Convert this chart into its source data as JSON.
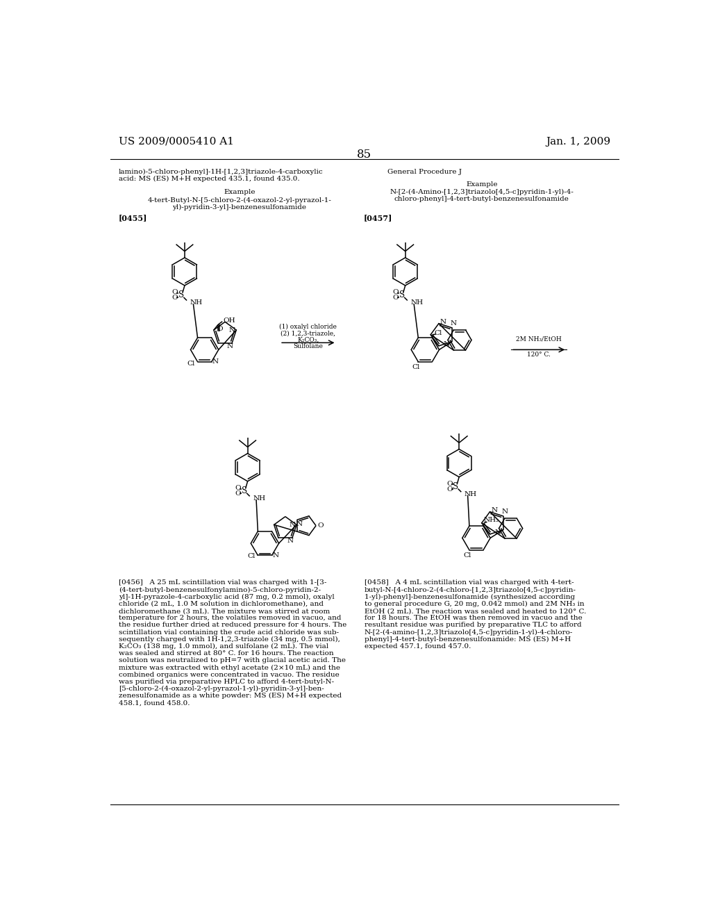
{
  "page_number": "85",
  "header_left": "US 2009/0005410 A1",
  "header_right": "Jan. 1, 2009",
  "background_color": "#ffffff",
  "text_color": "#000000",
  "font_size_header": 11,
  "font_size_body": 7.5,
  "font_size_label": 8,
  "reaction1_label1": "(1) oxalyl chloride",
  "reaction1_label2": "(2) 1,2,3-triazole,",
  "reaction1_label3": "K₂CO₃,",
  "reaction1_label4": "Sulfolane",
  "reaction2_label1": "2M NH₃/EtOH",
  "reaction2_label2": "120° C.",
  "left_example_title": "Example",
  "left_compound_name_1": "4-tert-Butyl-N-[5-chloro-2-(4-oxazol-2-yl-pyrazol-1-",
  "left_compound_name_2": "yl)-pyridin-3-yl]-benzenesulfonamide",
  "left_label": "[0455]",
  "right_gen_proc": "General Procedure J",
  "right_example_title": "Example",
  "right_compound_name_1": "N-[2-(4-Amino-[1,2,3]triazolo[4,5-c]pyridin-1-yl)-4-",
  "right_compound_name_2": "chloro-phenyl]-4-tert-butyl-benzenesulfonamide",
  "right_label": "[0457]",
  "para0456_lines": [
    "[0456]   A 25 mL scintillation vial was charged with 1-[3-",
    "(4-tert-butyl-benzenesulfonylamino)-5-chloro-pyridin-2-",
    "yl]-1H-pyrazole-4-carboxylic acid (87 mg, 0.2 mmol), oxalyl",
    "chloride (2 mL, 1.0 M solution in dichloromethane), and",
    "dichloromethane (3 mL). The mixture was stirred at room",
    "temperature for 2 hours, the volatiles removed in vacuo, and",
    "the residue further dried at reduced pressure for 4 hours. The",
    "scintillation vial containing the crude acid chloride was sub-",
    "sequently charged with 1H-1,2,3-triazole (34 mg, 0.5 mmol),",
    "K₂CO₃ (138 mg, 1.0 mmol), and sulfolane (2 mL). The vial",
    "was sealed and stirred at 80° C. for 16 hours. The reaction",
    "solution was neutralized to pH=7 with glacial acetic acid. The",
    "mixture was extracted with ethyl acetate (2×10 mL) and the",
    "combined organics were concentrated in vacuo. The residue",
    "was purified via preparative HPLC to afford 4-tert-butyl-N-",
    "[5-chloro-2-(4-oxazol-2-yl-pyrazol-1-yl)-pyridin-3-yl]-ben-",
    "zenesulfonamide as a white powder: MS (ES) M+H expected",
    "458.1, found 458.0."
  ],
  "para0458_lines": [
    "[0458]   A 4 mL scintillation vial was charged with 4-tert-",
    "butyl-N-[4-chloro-2-(4-chloro-[1,2,3]triazolo[4,5-c]pyridin-",
    "1-yl)-phenyl]-benzenesulfonamide (synthesized according",
    "to general procedure G, 20 mg, 0.042 mmol) and 2M NH₃ in",
    "EtOH (2 mL). The reaction was sealed and heated to 120° C.",
    "for 18 hours. The EtOH was then removed in vacuo and the",
    "resultant residue was purified by preparative TLC to afford",
    "N-[2-(4-amino-[1,2,3]triazolo[4,5-c]pyridin-1-yl)-4-chloro-",
    "phenyl]-4-tert-butyl-benzenesulfonamide: MS (ES) M+H",
    "expected 457.1, found 457.0."
  ],
  "cont_left_1": "lamino)-5-chloro-phenyl]-1H-[1,2,3]triazole-4-carboxylic",
  "cont_left_2": "acid: MS (ES) M+H expected 435.1, found 435.0."
}
